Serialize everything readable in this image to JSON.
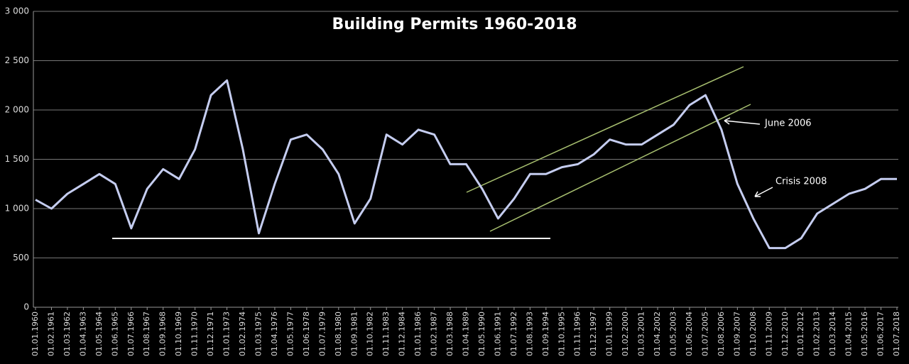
{
  "chart_data": {
    "type": "line",
    "title": "Building Permits 1960-2018",
    "categories": [
      "01.01.1960",
      "01.02.1961",
      "01.03.1962",
      "01.04.1963",
      "01.05.1964",
      "01.06.1965",
      "01.07.1966",
      "01.08.1967",
      "01.09.1968",
      "01.10.1969",
      "01.11.1970",
      "01.12.1971",
      "01.01.1973",
      "01.02.1974",
      "01.03.1975",
      "01.04.1976",
      "01.05.1977",
      "01.06.1978",
      "01.07.1979",
      "01.08.1980",
      "01.09.1981",
      "01.10.1982",
      "01.11.1983",
      "01.12.1984",
      "01.01.1986",
      "01.02.1987",
      "01.03.1988",
      "01.04.1989",
      "01.05.1990",
      "01.06.1991",
      "01.07.1992",
      "01.08.1993",
      "01.09.1994",
      "01.10.1995",
      "01.11.1996",
      "01.12.1997",
      "01.01.1999",
      "01.02.2000",
      "01.03.2001",
      "01.04.2002",
      "01.05.2003",
      "01.06.2004",
      "01.07.2005",
      "01.08.2006",
      "01.09.2007",
      "01.10.2008",
      "01.11.2009",
      "01.12.2010",
      "01.01.2012",
      "01.02.2013",
      "01.03.2014",
      "01.04.2015",
      "01.05.2016",
      "01.06.2017",
      "01.07.2018"
    ],
    "values": [
      1090,
      1000,
      1150,
      1250,
      1350,
      1250,
      800,
      1200,
      1400,
      1300,
      1600,
      2150,
      2300,
      1600,
      750,
      1250,
      1700,
      1750,
      1600,
      1350,
      850,
      1100,
      1750,
      1650,
      1800,
      1750,
      1450,
      1450,
      1200,
      900,
      1100,
      1350,
      1350,
      1420,
      1450,
      1550,
      1700,
      1650,
      1650,
      1750,
      1850,
      2050,
      2150,
      1800,
      1250,
      900,
      600,
      600,
      700,
      950,
      1050,
      1150,
      1200,
      1300,
      1300
    ],
    "color": "#c5cdf0",
    "ylim": [
      0,
      3000
    ],
    "yticks": [
      0,
      500,
      {
        "value": 1000,
        "label": "1 000"
      },
      {
        "value": 1500,
        "label": "1 500"
      },
      {
        "value": 2000,
        "label": "2 000"
      },
      {
        "value": 2500,
        "label": "2 500"
      },
      {
        "value": 3000,
        "label": "3 000"
      }
    ],
    "grid": true,
    "annotations": [
      "June 2006",
      "Crisis 2008"
    ]
  }
}
